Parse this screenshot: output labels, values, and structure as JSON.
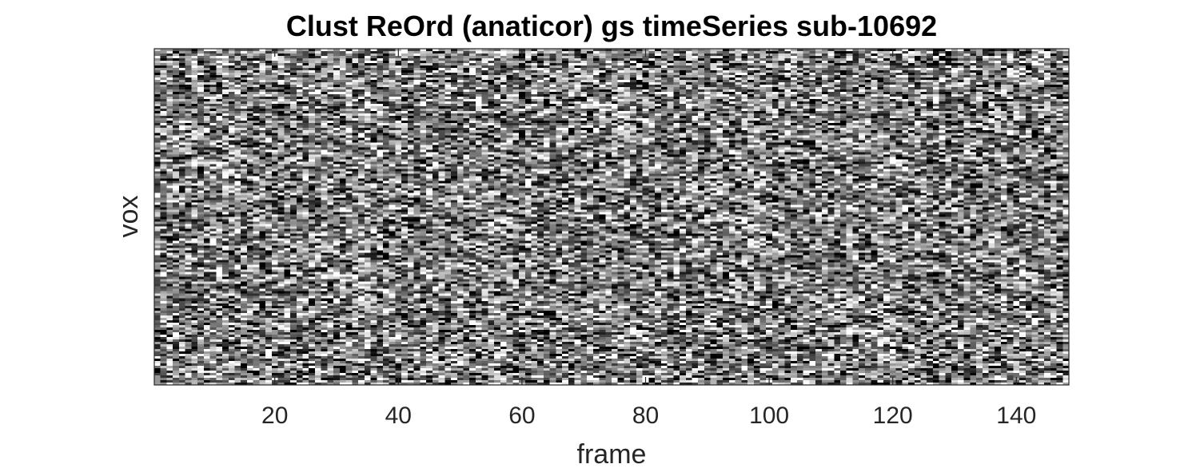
{
  "chart_data": {
    "type": "heatmap",
    "title": "Clust ReOrd (anaticor) gs timeSeries sub-10692",
    "xlabel": "frame",
    "ylabel": "vox",
    "xlim": [
      0.5,
      148.5
    ],
    "x_ticks": [
      20,
      40,
      60,
      80,
      100,
      120,
      140
    ],
    "x_tick_labels": [
      "20",
      "40",
      "60",
      "80",
      "100",
      "120",
      "140"
    ],
    "n_frames": 148,
    "colormap": "gray",
    "grid": false,
    "colors": {
      "axis": "#262626",
      "title": "#000000",
      "background": "#ffffff"
    }
  }
}
